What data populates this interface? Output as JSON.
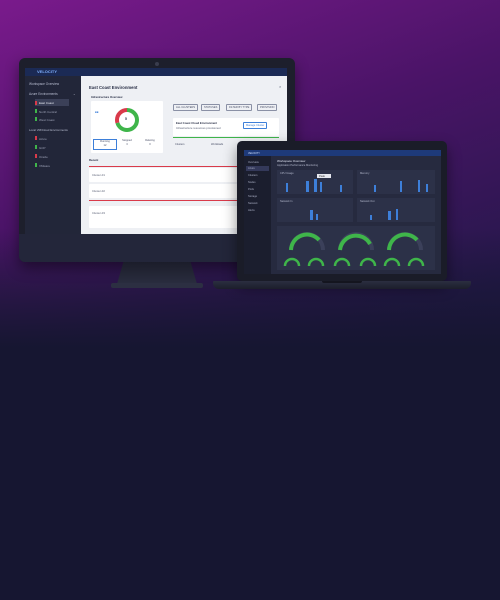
{
  "imac": {
    "logo": "VELOCITY",
    "sidebar": {
      "title": "Workspace Overview",
      "section1": "Azure Environments",
      "items1": [
        "East Coast",
        "North Central",
        "West Coast"
      ],
      "section2": "Local VM/Cloud Environments",
      "items2": [
        "Azure",
        "GCP",
        "Oracle",
        "VMware"
      ]
    },
    "page_title": "East Coast Environment",
    "panel_title": "Infrastructure Overview",
    "donut_value": "5",
    "stats": [
      {
        "label": "Running",
        "value": "12"
      },
      {
        "label": "Stopped",
        "value": "3"
      },
      {
        "label": "Deleting",
        "value": "0"
      }
    ],
    "filters": [
      "ALL CLUSTERS",
      "STATUSES",
      "FILTER BY TYPE",
      "PROVISION"
    ],
    "notice_title": "East Coast Cloud Environment",
    "notice_text": "Infrastructure resources provisioned",
    "notice_button": "Manage Cluster",
    "dropdowns": [
      "Clusters",
      "Workloads"
    ],
    "list_heading": "Recent",
    "rows": [
      "Cluster-01",
      "Cluster-02",
      "Cluster-03"
    ]
  },
  "laptop": {
    "logo": "VELOCITY",
    "page_title": "Workspace Overview",
    "subtitle": "Application Performance Monitoring",
    "sidebar_items": [
      "Overview",
      "Azure",
      "Clusters",
      "Nodes",
      "Pods",
      "Storage",
      "Network",
      "Alerts"
    ],
    "chart_titles": [
      "CPU Usage",
      "Memory",
      "Network In",
      "Network Out"
    ],
    "tooltip": "Peak"
  },
  "colors": {
    "accent": "#3d7fd9",
    "green": "#3fb54a",
    "red": "#d93a4a",
    "purple": "#7a1a8c"
  }
}
